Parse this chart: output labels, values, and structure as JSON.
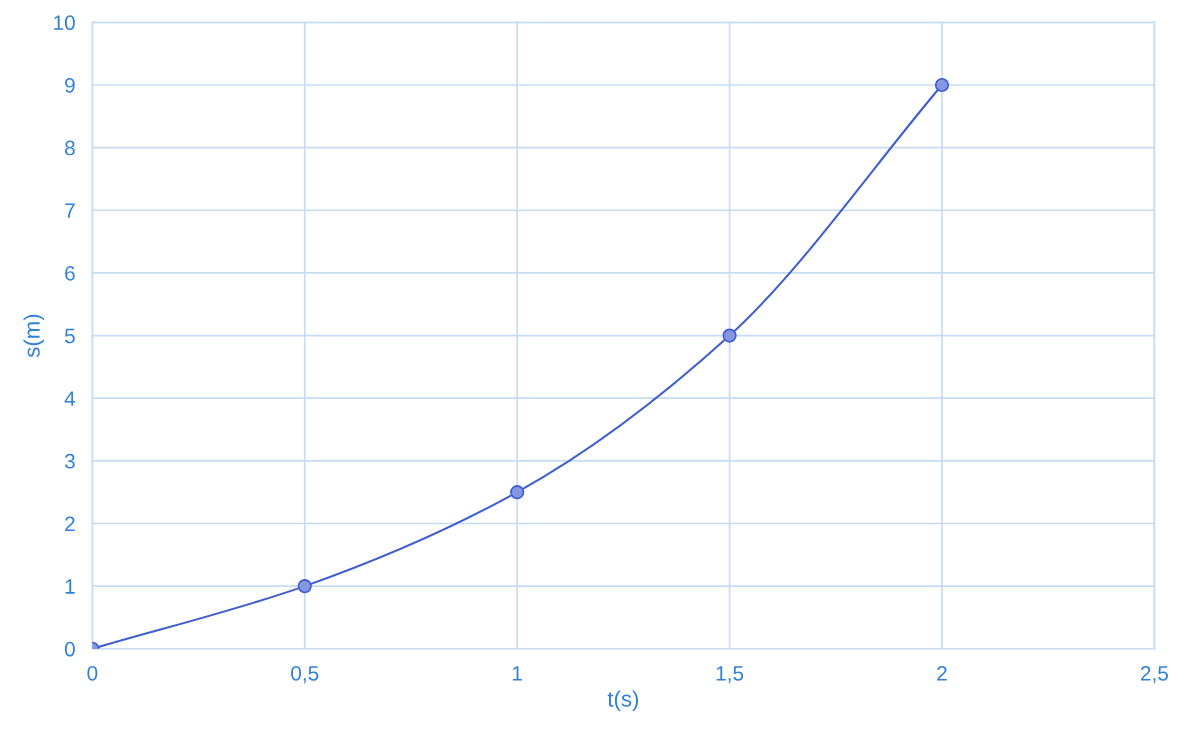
{
  "chart_data": {
    "type": "line",
    "xlabel": "t(s)",
    "ylabel": "s(m)",
    "x": [
      0,
      0.5,
      1,
      1.5,
      2
    ],
    "series": [
      {
        "color": "#3f5fd0",
        "values": [
          0,
          1,
          2.5,
          5,
          9
        ]
      }
    ],
    "xlim": [
      0,
      2.5
    ],
    "ylim": [
      0,
      10
    ],
    "xticks": [
      0,
      {
        "value": 0.5,
        "label": "0,5"
      },
      1,
      {
        "value": 1.5,
        "label": "1,5"
      },
      2,
      {
        "value": 2.5,
        "label": "2,5"
      }
    ],
    "yticks": [
      0,
      1,
      2,
      3,
      4,
      5,
      6,
      7,
      8,
      9,
      10
    ],
    "grid": true,
    "marker": "circle",
    "line_style": "solid",
    "legend": false
  }
}
